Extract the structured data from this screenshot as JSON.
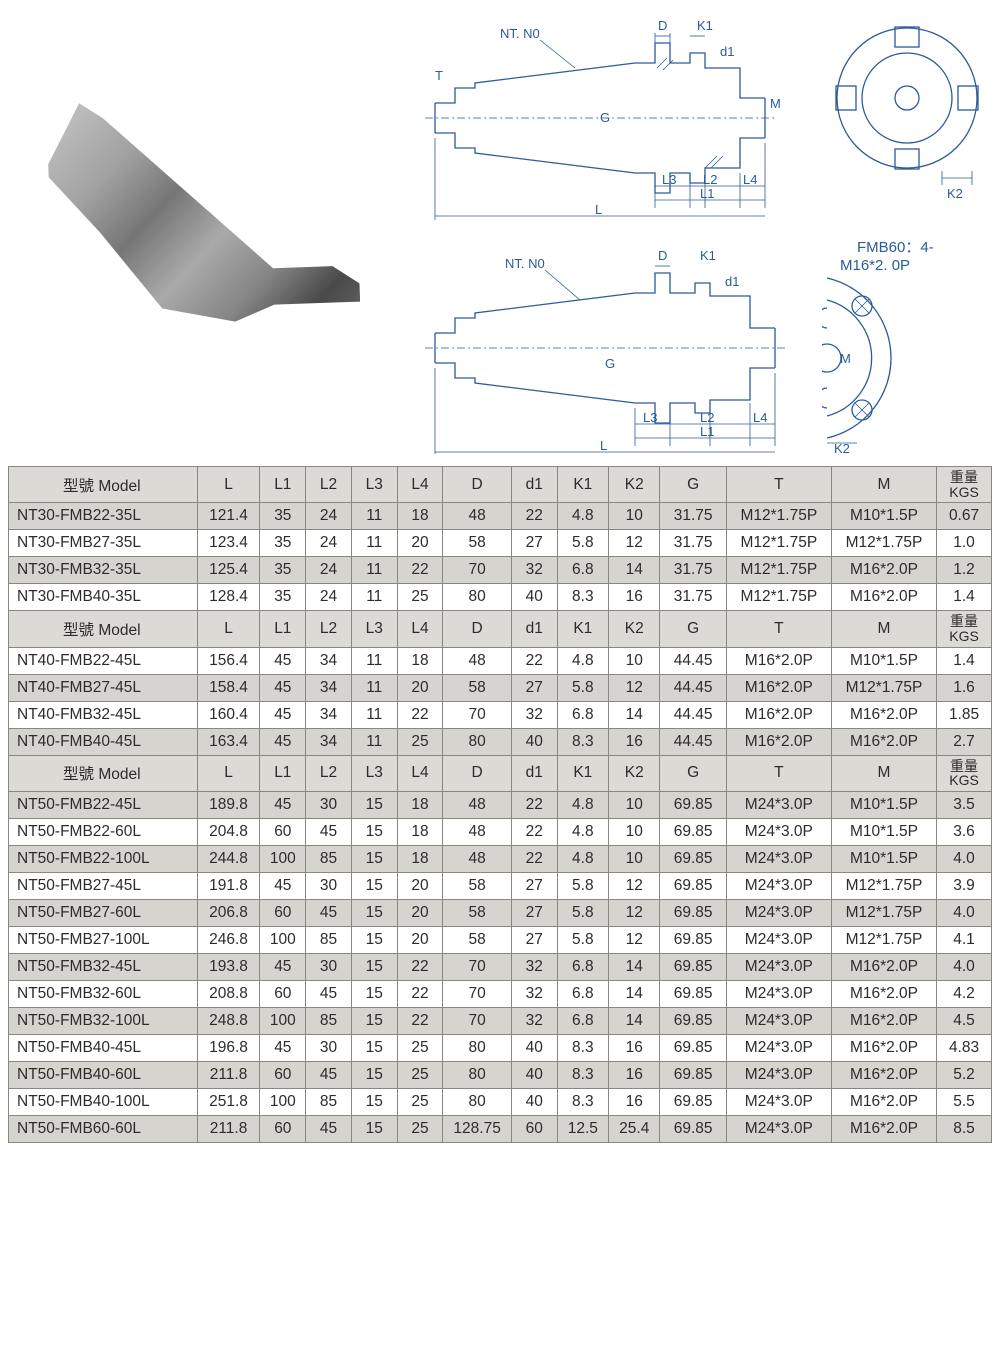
{
  "diagram": {
    "label_nt": "NT. N0",
    "label_T": "T",
    "label_D": "D",
    "label_K1": "K1",
    "label_d1": "d1",
    "label_G": "G",
    "label_M": "M",
    "label_L": "L",
    "label_L1": "L1",
    "label_L2": "L2",
    "label_L3": "L3",
    "label_L4": "L4",
    "label_K2": "K2",
    "fmb_label": "FMB60：4-",
    "thread_label": "M16*2. 0P"
  },
  "table": {
    "header": {
      "model": "型號  Model",
      "L": "L",
      "L1": "L1",
      "L2": "L2",
      "L3": "L3",
      "L4": "L4",
      "D": "D",
      "d1": "d1",
      "K1": "K1",
      "K2": "K2",
      "G": "G",
      "T": "T",
      "M": "M",
      "kgs1": "重量",
      "kgs2": "KGS"
    },
    "colwidths": {
      "model": 165,
      "L": 55,
      "L1": 40,
      "L2": 40,
      "L3": 40,
      "L4": 40,
      "D": 60,
      "d1": 40,
      "K1": 45,
      "K2": 45,
      "G": 58,
      "T": 92,
      "M": 92,
      "KGS": 48
    },
    "colors": {
      "border": "#8a8682",
      "shade": "#d6d4ce",
      "header_shade": "#dcdad4",
      "text": "#2c2c2c"
    },
    "sections": [
      {
        "rows": [
          {
            "shade": true,
            "c": [
              "NT30-FMB22-35L",
              "121.4",
              "35",
              "24",
              "11",
              "18",
              "48",
              "22",
              "4.8",
              "10",
              "31.75",
              "M12*1.75P",
              "M10*1.5P",
              "0.67"
            ]
          },
          {
            "shade": false,
            "c": [
              "NT30-FMB27-35L",
              "123.4",
              "35",
              "24",
              "11",
              "20",
              "58",
              "27",
              "5.8",
              "12",
              "31.75",
              "M12*1.75P",
              "M12*1.75P",
              "1.0"
            ]
          },
          {
            "shade": true,
            "c": [
              "NT30-FMB32-35L",
              "125.4",
              "35",
              "24",
              "11",
              "22",
              "70",
              "32",
              "6.8",
              "14",
              "31.75",
              "M12*1.75P",
              "M16*2.0P",
              "1.2"
            ]
          },
          {
            "shade": false,
            "c": [
              "NT30-FMB40-35L",
              "128.4",
              "35",
              "24",
              "11",
              "25",
              "80",
              "40",
              "8.3",
              "16",
              "31.75",
              "M12*1.75P",
              "M16*2.0P",
              "1.4"
            ]
          }
        ]
      },
      {
        "rows": [
          {
            "shade": false,
            "c": [
              "NT40-FMB22-45L",
              "156.4",
              "45",
              "34",
              "11",
              "18",
              "48",
              "22",
              "4.8",
              "10",
              "44.45",
              "M16*2.0P",
              "M10*1.5P",
              "1.4"
            ]
          },
          {
            "shade": true,
            "c": [
              "NT40-FMB27-45L",
              "158.4",
              "45",
              "34",
              "11",
              "20",
              "58",
              "27",
              "5.8",
              "12",
              "44.45",
              "M16*2.0P",
              "M12*1.75P",
              "1.6"
            ]
          },
          {
            "shade": false,
            "c": [
              "NT40-FMB32-45L",
              "160.4",
              "45",
              "34",
              "11",
              "22",
              "70",
              "32",
              "6.8",
              "14",
              "44.45",
              "M16*2.0P",
              "M16*2.0P",
              "1.85"
            ]
          },
          {
            "shade": true,
            "c": [
              "NT40-FMB40-45L",
              "163.4",
              "45",
              "34",
              "11",
              "25",
              "80",
              "40",
              "8.3",
              "16",
              "44.45",
              "M16*2.0P",
              "M16*2.0P",
              "2.7"
            ]
          }
        ]
      },
      {
        "rows": [
          {
            "shade": true,
            "c": [
              "NT50-FMB22-45L",
              "189.8",
              "45",
              "30",
              "15",
              "18",
              "48",
              "22",
              "4.8",
              "10",
              "69.85",
              "M24*3.0P",
              "M10*1.5P",
              "3.5"
            ]
          },
          {
            "shade": false,
            "c": [
              "NT50-FMB22-60L",
              "204.8",
              "60",
              "45",
              "15",
              "18",
              "48",
              "22",
              "4.8",
              "10",
              "69.85",
              "M24*3.0P",
              "M10*1.5P",
              "3.6"
            ]
          },
          {
            "shade": true,
            "c": [
              "NT50-FMB22-100L",
              "244.8",
              "100",
              "85",
              "15",
              "18",
              "48",
              "22",
              "4.8",
              "10",
              "69.85",
              "M24*3.0P",
              "M10*1.5P",
              "4.0"
            ]
          },
          {
            "shade": false,
            "c": [
              "NT50-FMB27-45L",
              "191.8",
              "45",
              "30",
              "15",
              "20",
              "58",
              "27",
              "5.8",
              "12",
              "69.85",
              "M24*3.0P",
              "M12*1.75P",
              "3.9"
            ]
          },
          {
            "shade": true,
            "c": [
              "NT50-FMB27-60L",
              "206.8",
              "60",
              "45",
              "15",
              "20",
              "58",
              "27",
              "5.8",
              "12",
              "69.85",
              "M24*3.0P",
              "M12*1.75P",
              "4.0"
            ]
          },
          {
            "shade": false,
            "c": [
              "NT50-FMB27-100L",
              "246.8",
              "100",
              "85",
              "15",
              "20",
              "58",
              "27",
              "5.8",
              "12",
              "69.85",
              "M24*3.0P",
              "M12*1.75P",
              "4.1"
            ]
          },
          {
            "shade": true,
            "c": [
              "NT50-FMB32-45L",
              "193.8",
              "45",
              "30",
              "15",
              "22",
              "70",
              "32",
              "6.8",
              "14",
              "69.85",
              "M24*3.0P",
              "M16*2.0P",
              "4.0"
            ]
          },
          {
            "shade": false,
            "c": [
              "NT50-FMB32-60L",
              "208.8",
              "60",
              "45",
              "15",
              "22",
              "70",
              "32",
              "6.8",
              "14",
              "69.85",
              "M24*3.0P",
              "M16*2.0P",
              "4.2"
            ]
          },
          {
            "shade": true,
            "c": [
              "NT50-FMB32-100L",
              "248.8",
              "100",
              "85",
              "15",
              "22",
              "70",
              "32",
              "6.8",
              "14",
              "69.85",
              "M24*3.0P",
              "M16*2.0P",
              "4.5"
            ]
          },
          {
            "shade": false,
            "c": [
              "NT50-FMB40-45L",
              "196.8",
              "45",
              "30",
              "15",
              "25",
              "80",
              "40",
              "8.3",
              "16",
              "69.85",
              "M24*3.0P",
              "M16*2.0P",
              "4.83"
            ]
          },
          {
            "shade": true,
            "c": [
              "NT50-FMB40-60L",
              "211.8",
              "60",
              "45",
              "15",
              "25",
              "80",
              "40",
              "8.3",
              "16",
              "69.85",
              "M24*3.0P",
              "M16*2.0P",
              "5.2"
            ]
          },
          {
            "shade": false,
            "c": [
              "NT50-FMB40-100L",
              "251.8",
              "100",
              "85",
              "15",
              "25",
              "80",
              "40",
              "8.3",
              "16",
              "69.85",
              "M24*3.0P",
              "M16*2.0P",
              "5.5"
            ]
          },
          {
            "shade": true,
            "c": [
              "NT50-FMB60-60L",
              "211.8",
              "60",
              "45",
              "15",
              "25",
              "128.75",
              "60",
              "12.5",
              "25.4",
              "69.85",
              "M24*3.0P",
              "M16*2.0P",
              "8.5"
            ]
          }
        ]
      }
    ]
  }
}
